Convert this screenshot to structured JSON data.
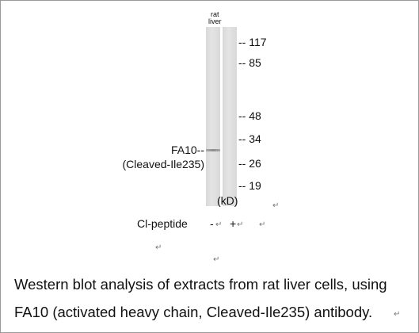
{
  "lane_label": [
    "rat",
    "liver"
  ],
  "markers": [
    "-- 117",
    "-- 85",
    "-- 48",
    "-- 34",
    "-- 26",
    "-- 19"
  ],
  "unit": "(kD)",
  "protein": {
    "name": "FA10--",
    "form": "(Cleaved-Ile235)"
  },
  "treatment": {
    "label": "Cl-peptide",
    "signs": [
      "-",
      "+"
    ]
  },
  "paragraph_marks": [
    "↵",
    "↵",
    "↵",
    "↵",
    "↵",
    "↵",
    "↵"
  ],
  "caption": [
    "Western blot analysis of extracts from rat liver cells, using",
    "FA10 (activated heavy chain, Cleaved-Ile235) antibody."
  ]
}
